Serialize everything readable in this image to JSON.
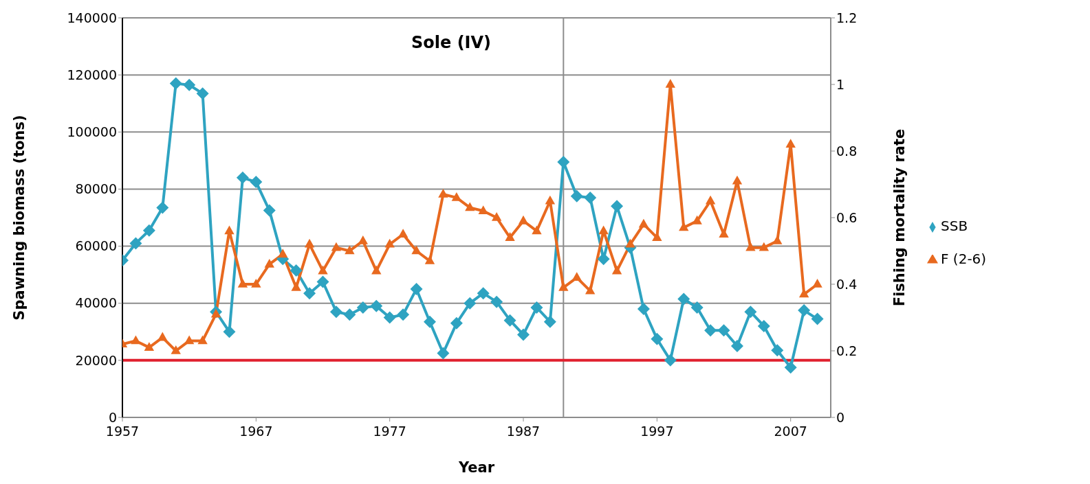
{
  "chart_data": {
    "type": "line",
    "title": "Sole (IV)",
    "xlabel": "Year",
    "ylabel": "Spawning biomass  (tons)",
    "y2label": "Fishing mortality rate",
    "x": [
      1957,
      1958,
      1959,
      1960,
      1961,
      1962,
      1963,
      1964,
      1965,
      1966,
      1967,
      1968,
      1969,
      1970,
      1971,
      1972,
      1973,
      1974,
      1975,
      1976,
      1977,
      1978,
      1979,
      1980,
      1981,
      1982,
      1983,
      1984,
      1985,
      1986,
      1987,
      1988,
      1989,
      1990,
      1991,
      1992,
      1993,
      1994,
      1995,
      1996,
      1997,
      1998,
      1999,
      2000,
      2001,
      2002,
      2003,
      2004,
      2005,
      2006,
      2007,
      2008,
      2009
    ],
    "series": [
      {
        "name": "SSB",
        "color": "#2ea3c1",
        "marker": "diamond",
        "values": [
          55000,
          61000,
          65500,
          73500,
          117000,
          116500,
          113500,
          37000,
          30000,
          84000,
          82500,
          72500,
          55500,
          51500,
          43500,
          47500,
          37000,
          36000,
          38500,
          39000,
          35000,
          36000,
          45000,
          33500,
          22500,
          33000,
          40000,
          43500,
          40500,
          34000,
          29000,
          38500,
          33500,
          89500,
          77500,
          77000,
          55500,
          74000,
          59500,
          38000,
          27500,
          20000,
          41500,
          38500,
          30500,
          30500,
          25000,
          37000,
          32000,
          23500,
          17500,
          37500,
          34500
        ]
      },
      {
        "name": "F (2-6)",
        "color": "#e8691f",
        "marker": "triangle",
        "axis": "y2",
        "values": [
          0.22,
          0.23,
          0.21,
          0.24,
          0.2,
          0.23,
          0.23,
          0.31,
          0.56,
          0.4,
          0.4,
          0.46,
          0.49,
          0.39,
          0.52,
          0.44,
          0.51,
          0.5,
          0.53,
          0.44,
          0.52,
          0.55,
          0.5,
          0.47,
          0.67,
          0.66,
          0.63,
          0.62,
          0.6,
          0.54,
          0.59,
          0.56,
          0.65,
          0.39,
          0.42,
          0.38,
          0.56,
          0.44,
          0.52,
          0.58,
          0.54,
          1.0,
          0.57,
          0.59,
          0.65,
          0.55,
          0.71,
          0.51,
          0.51,
          0.53,
          0.82,
          0.37,
          0.4
        ]
      }
    ],
    "xlim": [
      1957,
      2010
    ],
    "xticks": [
      1957,
      1967,
      1977,
      1987,
      1997,
      2007
    ],
    "ylim": [
      0,
      140000
    ],
    "yticks": [
      0,
      20000,
      40000,
      60000,
      80000,
      100000,
      120000,
      140000
    ],
    "y2lim": [
      0,
      1.2
    ],
    "y2ticks": [
      0,
      0.2,
      0.4,
      0.6,
      0.8,
      1,
      1.2
    ],
    "ref_lines": [
      {
        "axis": "x",
        "value": 1990,
        "color": "#8c8c8c"
      },
      {
        "axis": "y",
        "value": 20000,
        "color": "#e0202e"
      }
    ],
    "grid": "y",
    "legend": "right",
    "line_style": "solid"
  }
}
